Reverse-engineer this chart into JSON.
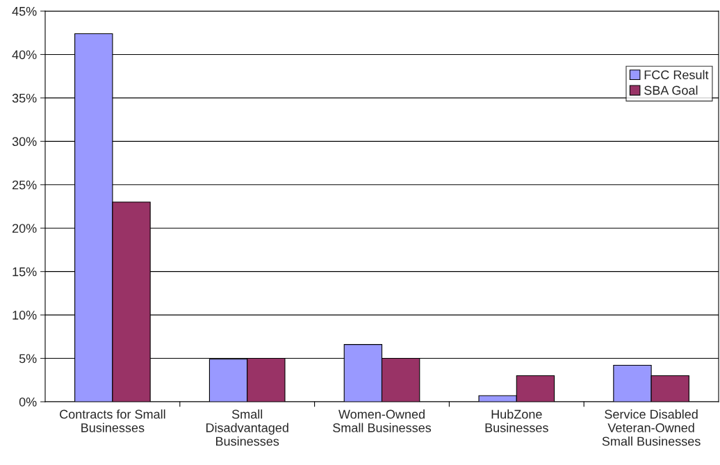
{
  "chart_data": {
    "type": "bar",
    "categories": [
      "Contracts for Small\nBusinesses",
      "Small\nDisadvantaged\nBusinesses",
      "Women-Owned\nSmall Businesses",
      "HubZone\nBusinesses",
      "Service Disabled\nVeteran-Owned\nSmall Businesses"
    ],
    "series": [
      {
        "name": "FCC Result",
        "color": "#9999ff",
        "values": [
          42.4,
          4.9,
          6.6,
          0.7,
          4.2
        ]
      },
      {
        "name": "SBA Goal",
        "color": "#993366",
        "values": [
          23,
          5,
          5,
          3,
          3
        ]
      }
    ],
    "ylim": [
      0,
      45
    ],
    "yticks": [
      {
        "value": 0,
        "label": "0%"
      },
      {
        "value": 5,
        "label": "5%"
      },
      {
        "value": 10,
        "label": "10%"
      },
      {
        "value": 15,
        "label": "15%"
      },
      {
        "value": 20,
        "label": "20%"
      },
      {
        "value": 25,
        "label": "25%"
      },
      {
        "value": 30,
        "label": "30%"
      },
      {
        "value": 35,
        "label": "35%"
      },
      {
        "value": 40,
        "label": "40%"
      },
      {
        "value": 45,
        "label": "45%"
      }
    ],
    "grid": "y",
    "legend": "top right"
  }
}
